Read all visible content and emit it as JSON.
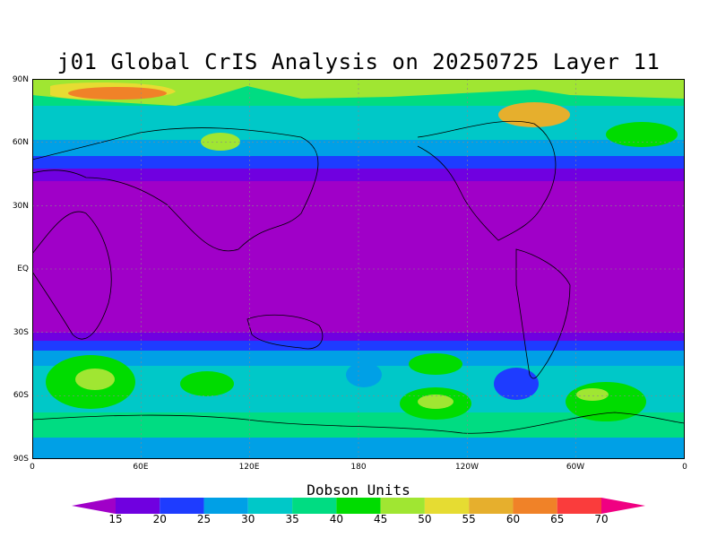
{
  "title": "j01 Global CrIS Analysis on 20250725 Layer 11",
  "map": {
    "lat_labels": [
      "90N",
      "60N",
      "30N",
      "EQ",
      "30S",
      "60S",
      "90S"
    ],
    "lon_labels": [
      "0",
      "60E",
      "120E",
      "180",
      "120W",
      "60W",
      "0"
    ],
    "grid": true,
    "projection": "cylindrical equidistant"
  },
  "colorbar": {
    "title": "Dobson Units",
    "levels": [
      "15",
      "20",
      "25",
      "30",
      "35",
      "40",
      "45",
      "50",
      "55",
      "60",
      "65",
      "70"
    ],
    "colors": [
      "#a000c8",
      "#7000e0",
      "#1e3cff",
      "#00a0e6",
      "#00c8c8",
      "#00dc82",
      "#00dc00",
      "#a0e632",
      "#e6dc32",
      "#e6af2d",
      "#f08228",
      "#fa3c3c",
      "#f00082"
    ],
    "orientation": "horizontal"
  }
}
